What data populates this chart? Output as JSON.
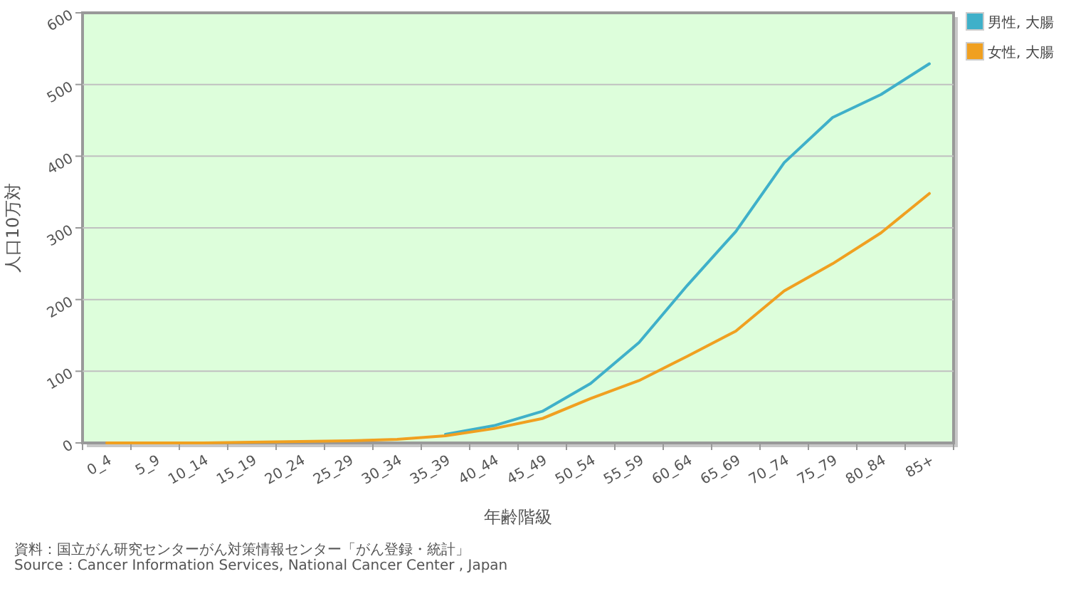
{
  "chart_data": {
    "type": "line",
    "xlabel": "年齢階級",
    "ylabel": "人口10万対",
    "categories": [
      "0_4",
      "5_9",
      "10_14",
      "15_19",
      "20_24",
      "25_29",
      "30_34",
      "35_39",
      "40_44",
      "45_49",
      "50_54",
      "55_59",
      "60_64",
      "65_69",
      "70_74",
      "75_79",
      "80_84",
      "85+"
    ],
    "series": [
      {
        "name": "男性, 大腸",
        "color": "#3fb0c9",
        "values": [
          null,
          null,
          null,
          null,
          null,
          null,
          null,
          12,
          24,
          44,
          83,
          140,
          220,
          295,
          391,
          454,
          486,
          529
        ]
      },
      {
        "name": "女性, 大腸",
        "color": "#f0a020",
        "values": [
          0,
          0,
          0,
          1,
          2,
          3,
          5,
          10,
          20,
          34,
          62,
          87,
          121,
          156,
          212,
          250,
          293,
          348
        ]
      }
    ],
    "ylim": [
      0,
      600
    ],
    "yticks": [
      0,
      100,
      200,
      300,
      400,
      500,
      600
    ],
    "grid": "y",
    "legend": "top right",
    "annotations": [
      "資料：国立がん研究センターがん対策情報センター「がん登録・統計」",
      "Source：Cancer Information Services, National Cancer Center , Japan"
    ]
  }
}
